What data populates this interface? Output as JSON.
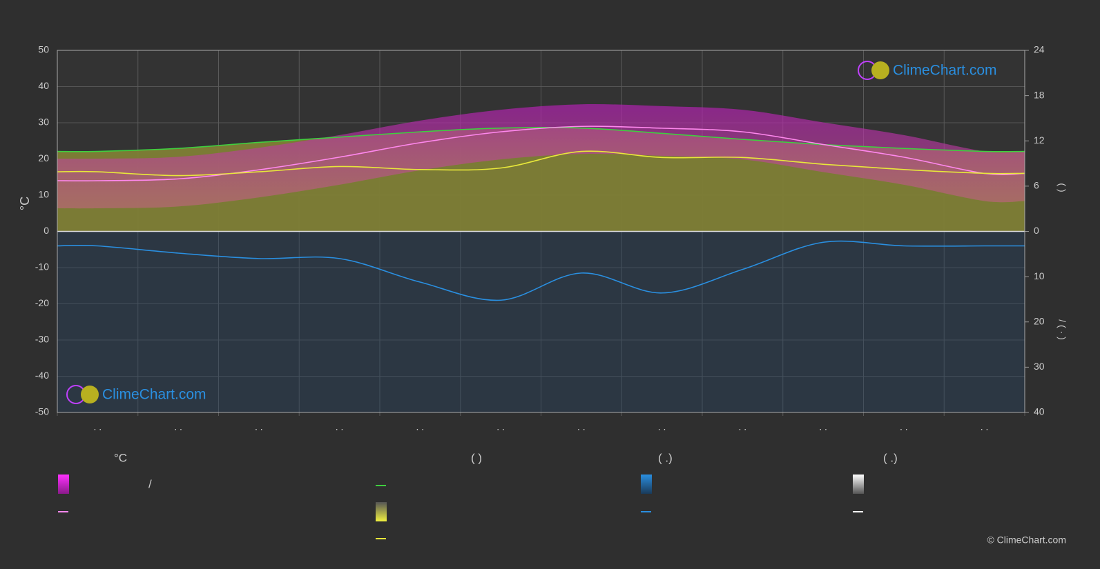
{
  "chart_data": {
    "type": "line",
    "categories": [
      ". .",
      ". .",
      ". .",
      ". .",
      ". .",
      ". .",
      ". .",
      ". .",
      ". .",
      ". .",
      ". .",
      ". ."
    ],
    "ylabel": "°C",
    "ylim": [
      -50,
      50
    ],
    "yticks": [
      -50,
      -40,
      -30,
      -20,
      -10,
      0,
      10,
      20,
      30,
      40,
      50
    ],
    "y2label": "(      )",
    "y2lim": [
      0,
      24
    ],
    "y2ticks": [
      0,
      6,
      12,
      18,
      24
    ],
    "y3label": "/      (  ·  )",
    "y3lim": [
      0,
      40
    ],
    "y3ticks": [
      10,
      20,
      30,
      40
    ],
    "grid": true,
    "series": [
      {
        "color": "#3fcf3f",
        "axis": "y2",
        "values": [
          10.6,
          11.0,
          11.8,
          12.5,
          13.2,
          13.7,
          13.7,
          13.0,
          12.2,
          11.5,
          11.0,
          10.6
        ]
      },
      {
        "color": "#ff88ee",
        "axis": "y",
        "values": [
          14,
          14.5,
          17,
          20.5,
          24.5,
          27.5,
          29,
          28.5,
          27.5,
          24,
          20.5,
          16
        ]
      },
      {
        "color": "#e8e83a",
        "axis": "y2",
        "values": [
          7.9,
          7.4,
          7.9,
          8.6,
          8.2,
          8.4,
          10.6,
          9.8,
          9.8,
          8.9,
          8.2,
          7.7
        ]
      },
      {
        "color": "#2a8fe0",
        "axis": "y3",
        "values": [
          3.2,
          4.8,
          6,
          6,
          11.2,
          15.2,
          9.2,
          13.6,
          8.4,
          2.4,
          3.2,
          3.2
        ]
      }
    ],
    "legend": {
      "headers": [
        "°C",
        "(            )",
        "(   .)",
        "(   .)"
      ],
      "slash": "/"
    },
    "watermark": "ClimeChart.com",
    "copyright": "© ClimeChart.com"
  }
}
